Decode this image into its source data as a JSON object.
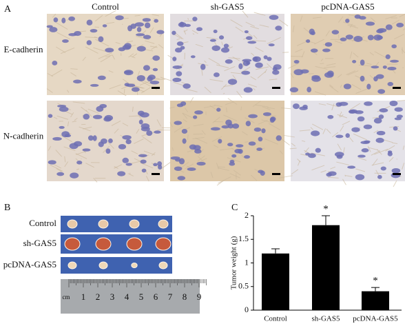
{
  "panel_a": {
    "label": "A",
    "columns": [
      "Control",
      "sh-GAS5",
      "pcDNA-GAS5"
    ],
    "rows": [
      "E-cadherin",
      "N-cadherin"
    ]
  },
  "panel_b": {
    "label": "B",
    "rows": [
      "Control",
      "sh-GAS5",
      "pcDNA-GAS5"
    ],
    "ruler_unit": "cm",
    "ruler_numbers": [
      1,
      2,
      3,
      4,
      5,
      6,
      7,
      8,
      9
    ]
  },
  "chart_data": {
    "type": "bar",
    "panel_label": "C",
    "y_label": "Tumor weight (g)",
    "categories": [
      "Control",
      "sh-GAS5",
      "pcDNA-GAS5"
    ],
    "values": [
      1.2,
      1.8,
      0.4
    ],
    "errors": [
      0.1,
      0.2,
      0.08
    ],
    "significance": [
      null,
      "*",
      "*"
    ],
    "color": "#000000",
    "ylim": [
      0,
      2
    ],
    "yticks": [
      0,
      0.5,
      1,
      1.5,
      2
    ]
  }
}
